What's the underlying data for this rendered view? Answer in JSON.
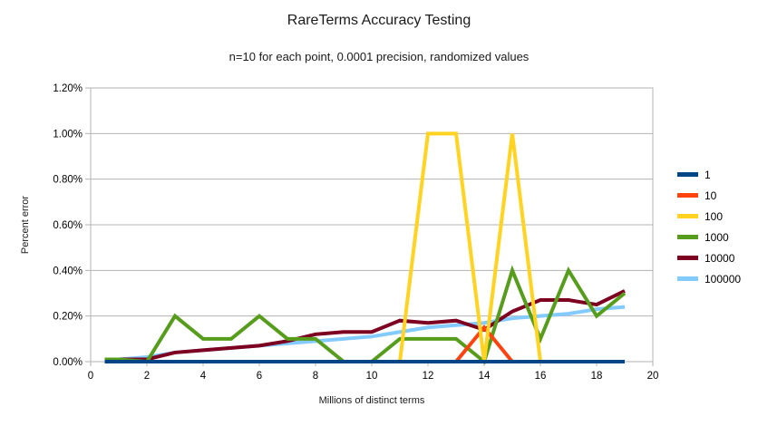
{
  "title": "RareTerms Accuracy Testing",
  "subtitle": "n=10 for each point, 0.0001 precision, randomized values",
  "chart_data": {
    "type": "line",
    "title": "RareTerms Accuracy Testing",
    "subtitle": "n=10 for each point, 0.0001 precision, randomized values",
    "xlabel": "Millions of distinct terms",
    "ylabel": "Percent error",
    "xlim": [
      0,
      20
    ],
    "ylim": [
      0,
      1.2
    ],
    "y_unit": "percent",
    "grid": "horizontal",
    "legend_position": "right",
    "x_ticks": [
      0,
      2,
      4,
      6,
      8,
      10,
      12,
      14,
      16,
      18,
      20
    ],
    "y_ticks": [
      0.0,
      0.2,
      0.4,
      0.6,
      0.8,
      1.0,
      1.2
    ],
    "y_tick_labels": [
      "0.00%",
      "0.20%",
      "0.40%",
      "0.60%",
      "0.80%",
      "1.00%",
      "1.20%"
    ],
    "x": [
      0.5,
      1,
      2,
      3,
      4,
      5,
      6,
      7,
      8,
      9,
      10,
      11,
      12,
      13,
      14,
      15,
      16,
      17,
      18,
      19
    ],
    "series": [
      {
        "name": "1",
        "color": "#004586",
        "values": [
          0,
          0,
          0,
          0,
          0,
          0,
          0,
          0,
          0,
          0,
          0,
          0,
          0,
          0,
          0,
          0,
          0,
          0,
          0,
          0
        ]
      },
      {
        "name": "10",
        "color": "#FF420E",
        "values": [
          0,
          0,
          0,
          0,
          0,
          0,
          0,
          0,
          0,
          0,
          0,
          0,
          0,
          0,
          0.15,
          0,
          0,
          0,
          0,
          0
        ]
      },
      {
        "name": "100",
        "color": "#FFD320",
        "values": [
          0,
          0,
          0,
          0,
          0,
          0,
          0,
          0,
          0,
          0,
          0,
          0,
          1.0,
          1.0,
          0,
          1.0,
          0,
          0,
          0,
          0
        ]
      },
      {
        "name": "1000",
        "color": "#579D1C",
        "values": [
          0.01,
          0.01,
          0,
          0.2,
          0.1,
          0.1,
          0.2,
          0.1,
          0.1,
          0,
          0,
          0.1,
          0.1,
          0.1,
          0,
          0.4,
          0.1,
          0.4,
          0.2,
          0.3
        ]
      },
      {
        "name": "10000",
        "color": "#7E0021",
        "values": [
          0.01,
          0.01,
          0.01,
          0.04,
          0.05,
          0.06,
          0.07,
          0.09,
          0.12,
          0.13,
          0.13,
          0.18,
          0.17,
          0.18,
          0.14,
          0.22,
          0.27,
          0.27,
          0.25,
          0.31
        ]
      },
      {
        "name": "100000",
        "color": "#83CAFF",
        "values": [
          0.01,
          0.01,
          0.02,
          0.04,
          0.05,
          0.06,
          0.07,
          0.08,
          0.09,
          0.1,
          0.11,
          0.13,
          0.15,
          0.16,
          0.17,
          0.19,
          0.2,
          0.21,
          0.23,
          0.24
        ]
      }
    ],
    "draw_order": [
      "100000",
      "10000",
      "1000",
      "10",
      "100",
      "1"
    ],
    "grid_color": "#b3b3b3",
    "axis_text_color": "#000000"
  }
}
